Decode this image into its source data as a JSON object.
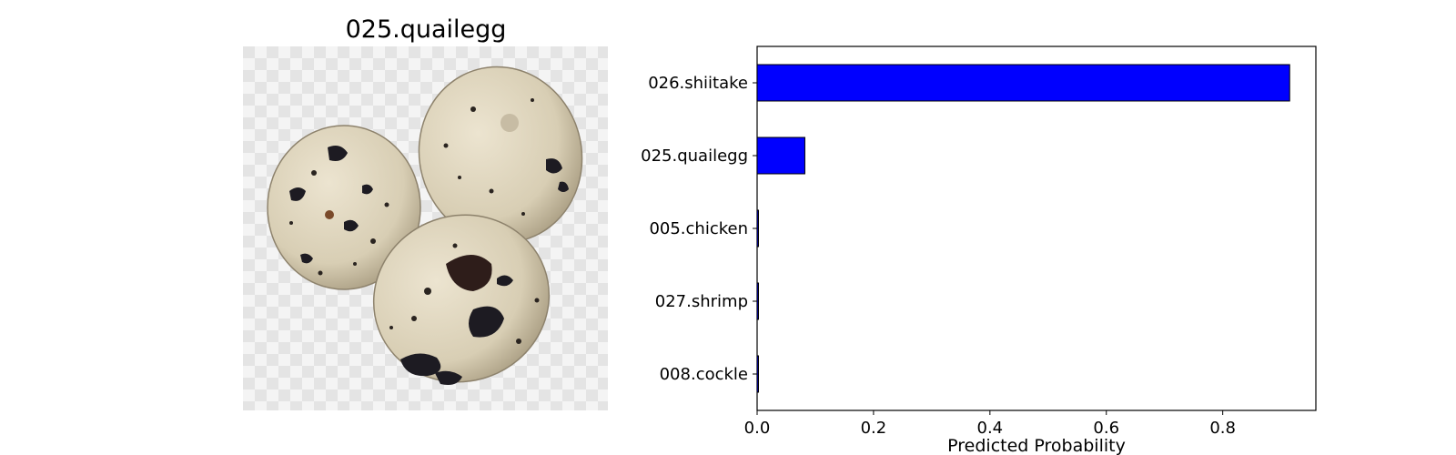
{
  "image_panel": {
    "title": "025.quailegg",
    "colors": {
      "shell": "#e0d6bf",
      "shell_shadow": "#b9ad92",
      "spots": "#1d1b22",
      "spots_brown": "#3a2a1e",
      "checker_light": "#f4f4f4",
      "checker_dark": "#e3e3e3"
    }
  },
  "chart_data": {
    "type": "bar",
    "orientation": "horizontal",
    "categories": [
      "026.shiitake",
      "025.quailegg",
      "005.chicken",
      "027.shrimp",
      "008.cockle"
    ],
    "values": [
      0.915,
      0.082,
      0.002,
      0.001,
      0.001
    ],
    "xlabel": "Predicted Probability",
    "ylabel": "",
    "xlim": [
      0,
      0.96
    ],
    "xticks": [
      0.0,
      0.2,
      0.4,
      0.6,
      0.8
    ],
    "xtick_labels": [
      "0.0",
      "0.2",
      "0.4",
      "0.6",
      "0.8"
    ],
    "grid": false,
    "bar_color": "#0000ff",
    "edge_color": "#000000"
  }
}
